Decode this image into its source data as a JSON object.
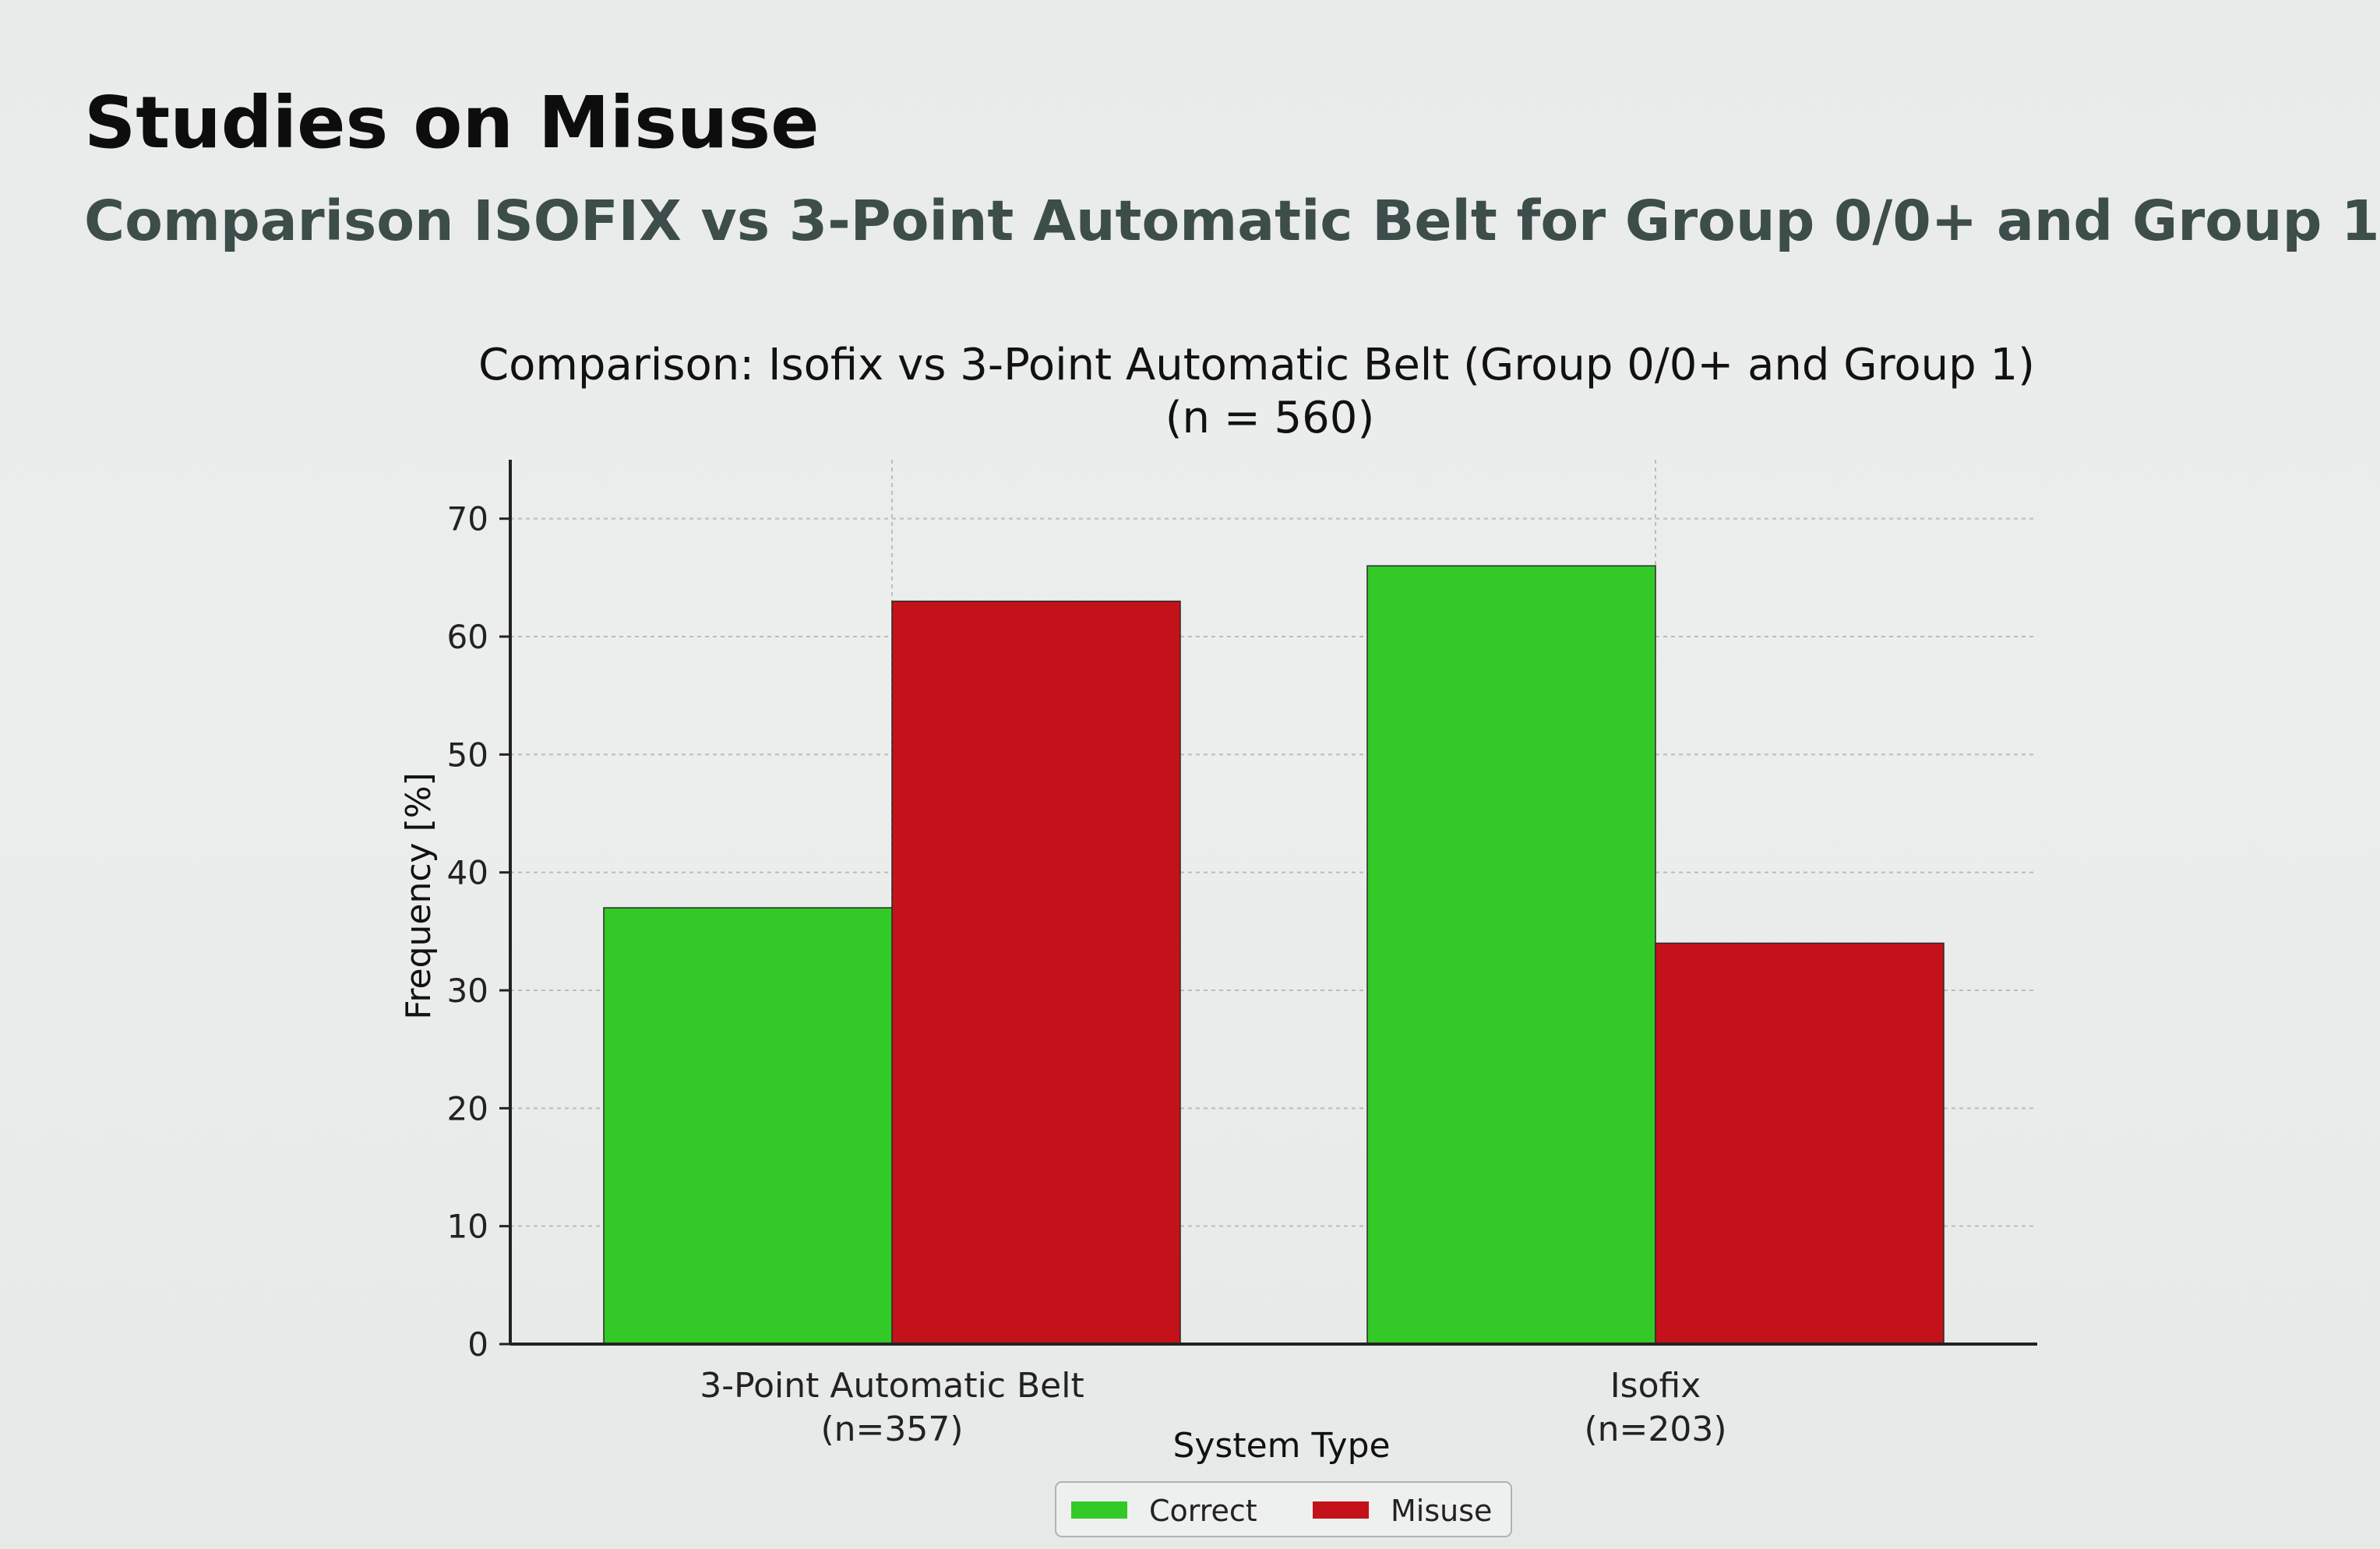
{
  "slide": {
    "title": "Studies on Misuse",
    "subtitle": "Comparison ISOFIX vs 3-Point Automatic Belt for Group 0/0+ and Group 1"
  },
  "chart_data": {
    "type": "bar",
    "title": "Comparison: Isofix vs 3-Point Automatic Belt (Group 0/0+ and Group 1)",
    "subtitle": "(n = 560)",
    "xlabel": "System Type",
    "ylabel": "Frequency [%]",
    "categories": [
      {
        "name": "3-Point Automatic Belt",
        "sub": "(n=357)"
      },
      {
        "name": "Isofix",
        "sub": "(n=203)"
      }
    ],
    "series": [
      {
        "name": "Correct",
        "color": "#33c926",
        "values": [
          37,
          66
        ]
      },
      {
        "name": "Misuse",
        "color": "#c4121a",
        "values": [
          63,
          34
        ]
      }
    ],
    "ylim": [
      0,
      75
    ],
    "yticks": [
      0,
      10,
      20,
      30,
      40,
      50,
      60,
      70
    ],
    "grid": true,
    "legend_position": "bottom-center"
  }
}
